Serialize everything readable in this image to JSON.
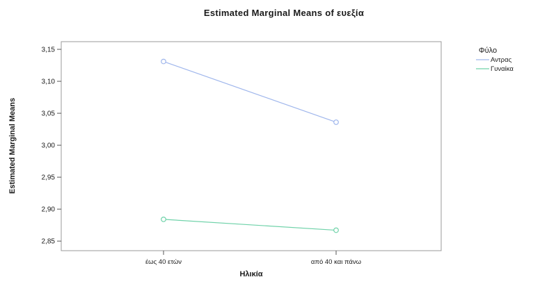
{
  "chart_data": {
    "type": "line",
    "title": "Estimated Marginal Means of ευεξία",
    "xlabel": "Ηλικία",
    "ylabel": "Estimated Marginal Means",
    "categories": [
      "έως 40 ετών",
      "από 40 και πάνω"
    ],
    "series": [
      {
        "name": "Αντρας",
        "values": [
          3.131,
          3.036
        ],
        "color": "#9fb6ec"
      },
      {
        "name": "Γυναίκα",
        "values": [
          2.884,
          2.867
        ],
        "color": "#6fd2a9"
      }
    ],
    "ylim": [
      2.835,
      3.162
    ],
    "yticks": [
      "3,15",
      "3,10",
      "3,05",
      "3,00",
      "2,95",
      "2,90",
      "2,85"
    ],
    "ytick_values": [
      3.15,
      3.1,
      3.05,
      3.0,
      2.95,
      2.9,
      2.85
    ],
    "legend": {
      "title": "Φύλο",
      "placement": "right"
    },
    "grid": false,
    "frame_color": "#9a9a9a"
  }
}
